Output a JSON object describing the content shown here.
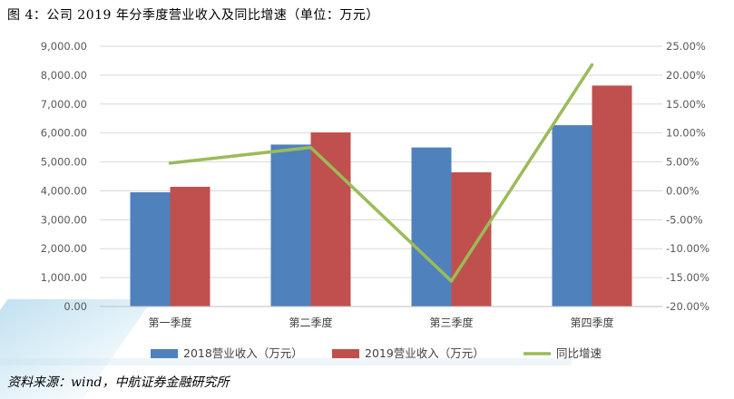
{
  "caption": "图 4：公司 2019 年分季度营业收入及同比增速（单位：万元）",
  "source": "资料来源：wind，中航证券金融研究所",
  "colors": {
    "series_2018": "#4F81BD",
    "series_2019": "#C0504D",
    "growth_line": "#9BBB59",
    "grid": "#D9D9D9",
    "text": "#595959"
  },
  "chart_data": {
    "type": "bar",
    "categories": [
      "第一季度",
      "第二季度",
      "第三季度",
      "第四季度"
    ],
    "series": [
      {
        "name": "2018营业收入（万元）",
        "type": "bar",
        "axis": "left",
        "values": [
          3950,
          5600,
          5500,
          6270
        ]
      },
      {
        "name": "2019营业收入（万元）",
        "type": "bar",
        "axis": "left",
        "values": [
          4140,
          6020,
          4640,
          7640
        ]
      },
      {
        "name": "同比增速",
        "type": "line",
        "axis": "right",
        "values": [
          4.8,
          7.5,
          -15.6,
          21.8
        ]
      }
    ],
    "y_left": {
      "min": 0,
      "max": 9000,
      "step": 1000,
      "tick_labels": [
        "0.00",
        "1,000.00",
        "2,000.00",
        "3,000.00",
        "4,000.00",
        "5,000.00",
        "6,000.00",
        "7,000.00",
        "8,000.00",
        "9,000.00"
      ]
    },
    "y_right": {
      "min": -20,
      "max": 25,
      "step": 5,
      "tick_labels": [
        "-20.00%",
        "-15.00%",
        "-10.00%",
        "-5.00%",
        "0.00%",
        "5.00%",
        "10.00%",
        "15.00%",
        "20.00%",
        "25.00%"
      ]
    },
    "grid": true,
    "legend_position": "bottom"
  }
}
